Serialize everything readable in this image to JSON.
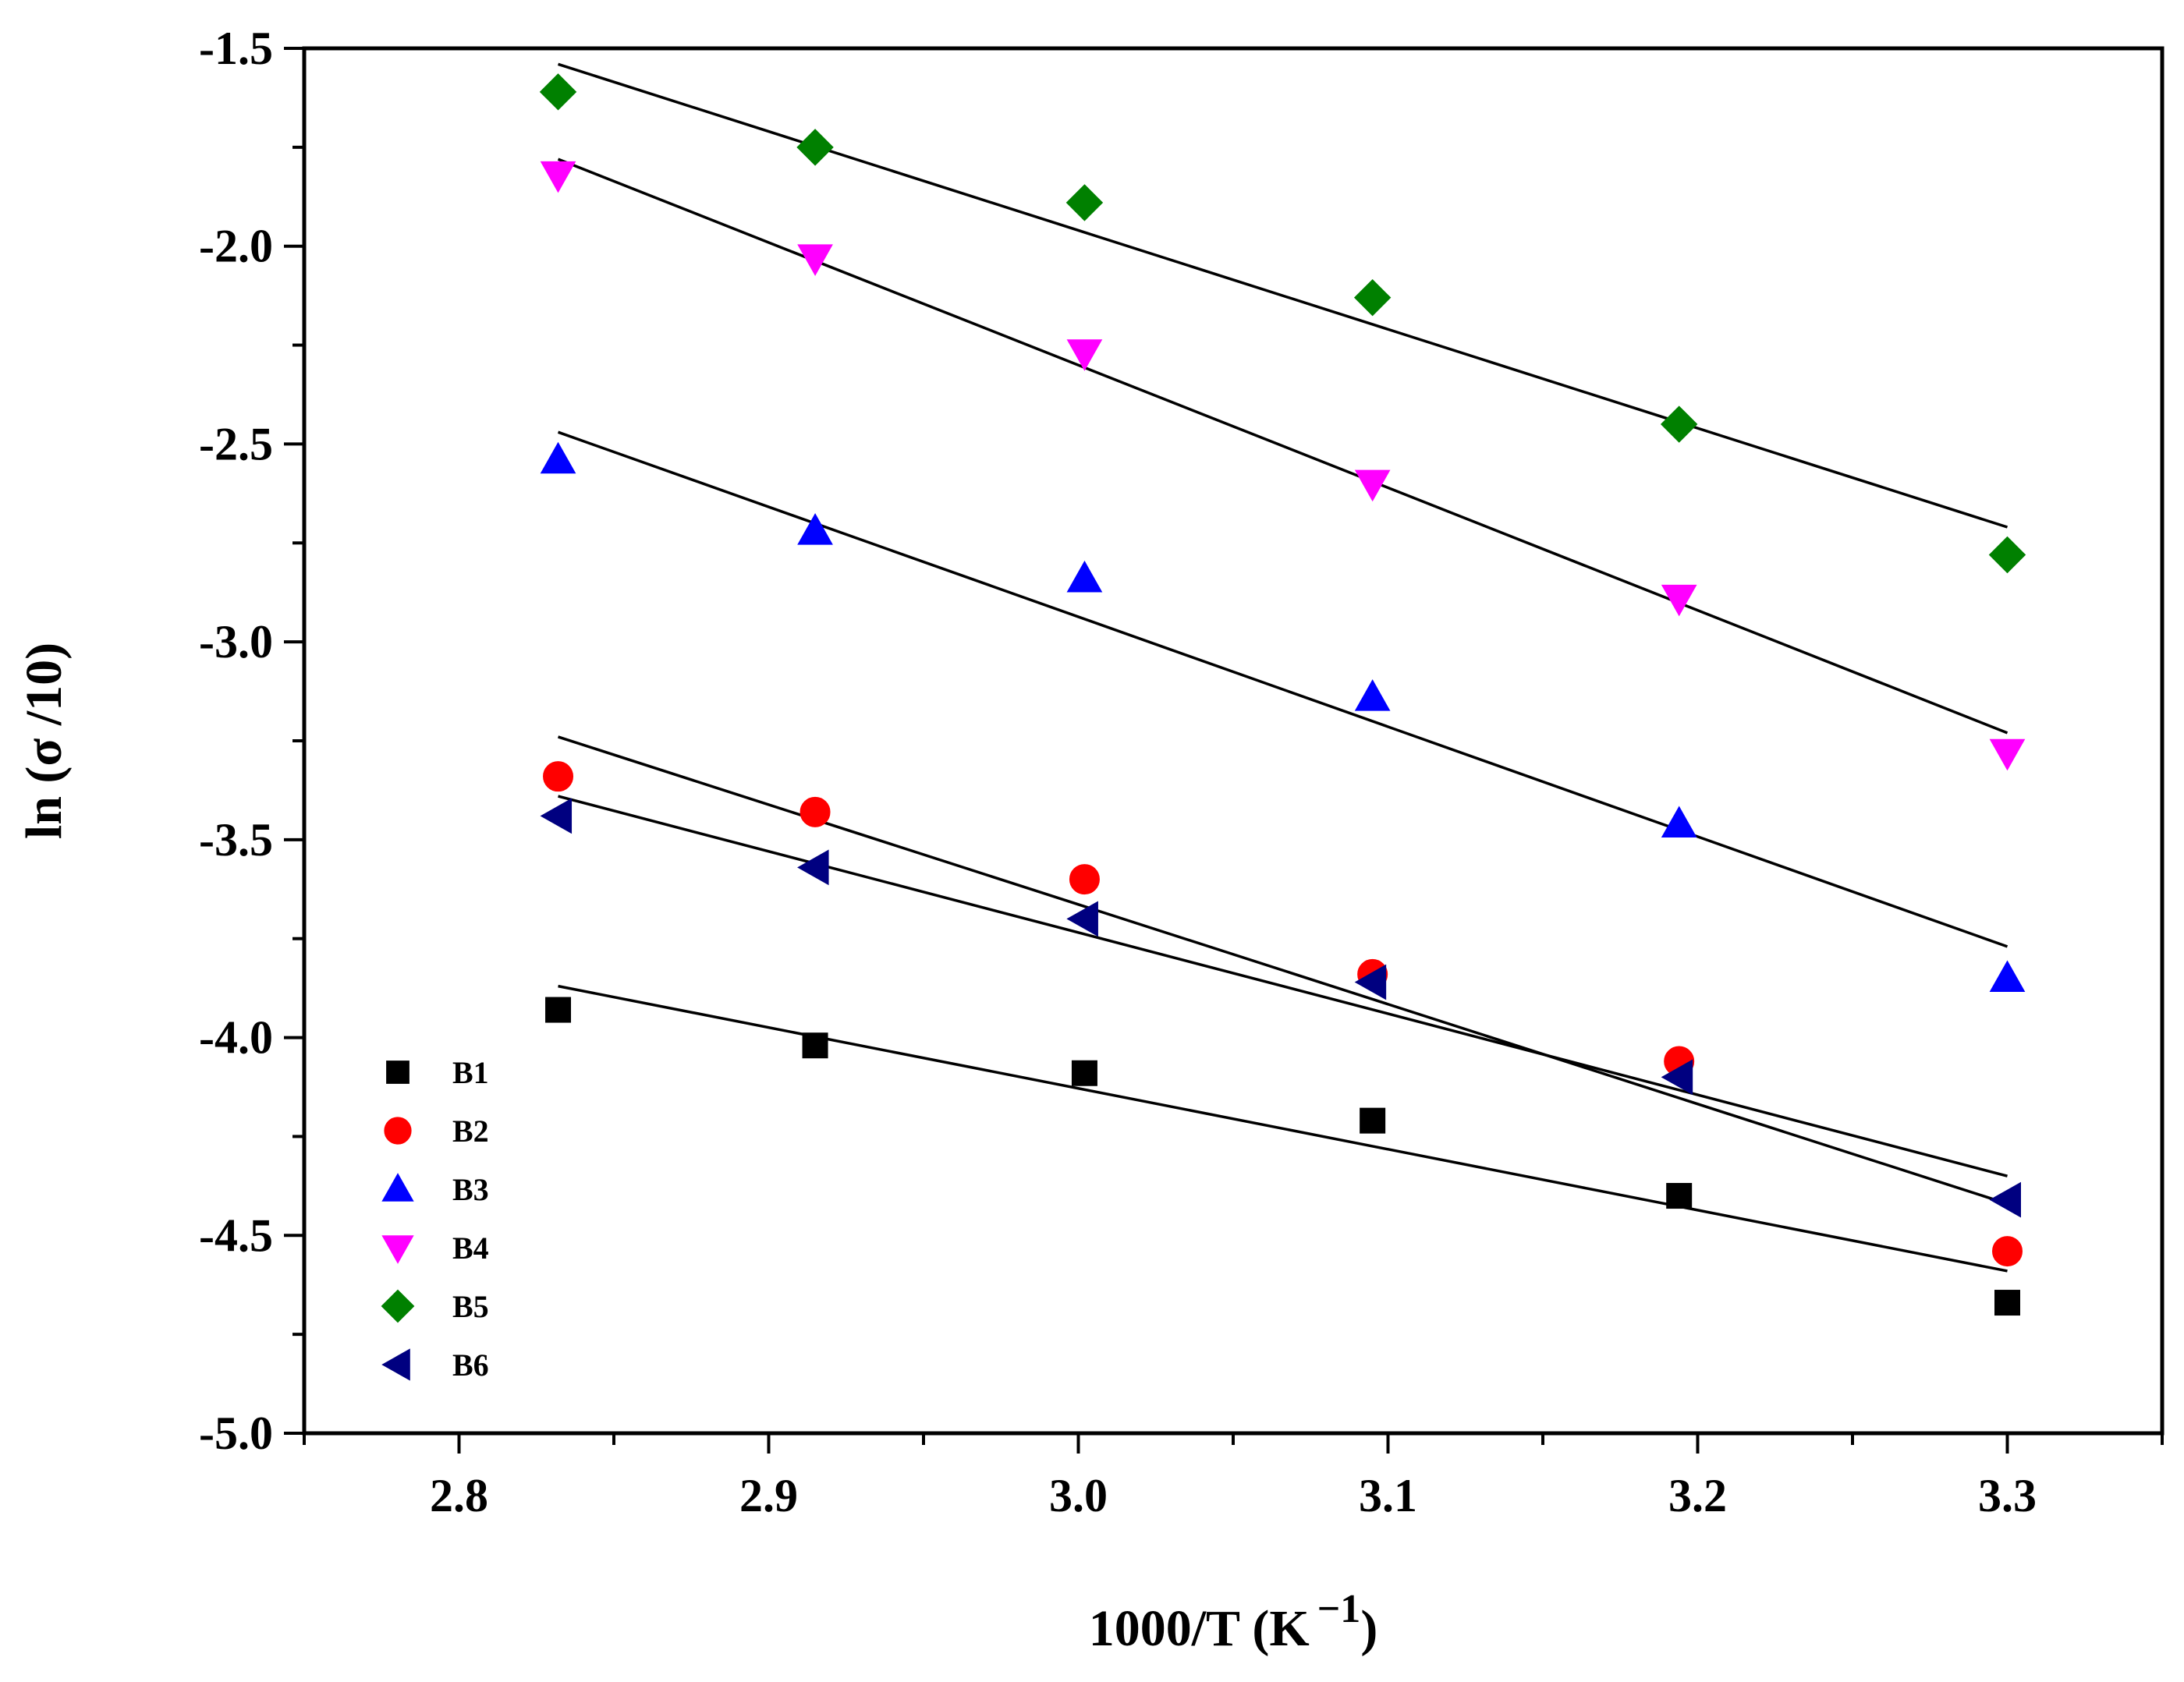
{
  "chart_data": {
    "type": "scatter",
    "title": "",
    "xlabel": "1000/T (K",
    "xlabel_sup": "−1",
    "xlabel_close": ")",
    "ylabel": "ln (σ /10)",
    "xlim": [
      2.75,
      3.35
    ],
    "ylim": [
      -5.0,
      -1.5
    ],
    "x_ticks": [
      2.8,
      2.9,
      3.0,
      3.1,
      3.2,
      3.3
    ],
    "x_tick_labels": [
      "2.8",
      "2.9",
      "3.0",
      "3.1",
      "3.2",
      "3.3"
    ],
    "y_ticks": [
      -1.5,
      -2.0,
      -2.5,
      -3.0,
      -3.5,
      -4.0,
      -4.5,
      -5.0
    ],
    "y_tick_labels": [
      "-1.5",
      "-2.0",
      "-2.5",
      "-3.0",
      "-3.5",
      "-4.0",
      "-4.5",
      "-5.0"
    ],
    "x": [
      2.832,
      2.915,
      3.002,
      3.095,
      3.194,
      3.3
    ],
    "legend_position": "bottom-left",
    "series": [
      {
        "name": "B1",
        "marker": "square",
        "color": "#000000",
        "values": [
          -3.93,
          -4.02,
          -4.09,
          -4.21,
          -4.4,
          -4.67
        ],
        "fit": {
          "x": [
            2.832,
            3.3
          ],
          "y": [
            -3.87,
            -4.59
          ]
        }
      },
      {
        "name": "B2",
        "marker": "circle",
        "color": "#ff0000",
        "values": [
          -3.34,
          -3.43,
          -3.6,
          -3.84,
          -4.06,
          -4.54
        ],
        "fit": {
          "x": [
            2.832,
            3.3
          ],
          "y": [
            -3.24,
            -4.42
          ]
        }
      },
      {
        "name": "B3",
        "marker": "triangle-up",
        "color": "#0000ff",
        "values": [
          -2.54,
          -2.72,
          -2.84,
          -3.14,
          -3.46,
          -3.85
        ],
        "fit": {
          "x": [
            2.832,
            3.3
          ],
          "y": [
            -2.47,
            -3.77
          ]
        }
      },
      {
        "name": "B4",
        "marker": "triangle-down",
        "color": "#ff00ff",
        "values": [
          -1.82,
          -2.03,
          -2.27,
          -2.6,
          -2.89,
          -3.28
        ],
        "fit": {
          "x": [
            2.832,
            3.3
          ],
          "y": [
            -1.78,
            -3.23
          ]
        }
      },
      {
        "name": "B5",
        "marker": "diamond",
        "color": "#008000",
        "values": [
          -1.61,
          -1.75,
          -1.89,
          -2.13,
          -2.45,
          -2.78
        ],
        "fit": {
          "x": [
            2.832,
            3.3
          ],
          "y": [
            -1.54,
            -2.71
          ]
        }
      },
      {
        "name": "B6",
        "marker": "triangle-left",
        "color": "#000080",
        "values": [
          -3.44,
          -3.57,
          -3.7,
          -3.86,
          -4.1,
          -4.41
        ],
        "fit": {
          "x": [
            2.832,
            3.3
          ],
          "y": [
            -3.39,
            -4.35
          ]
        }
      }
    ]
  }
}
